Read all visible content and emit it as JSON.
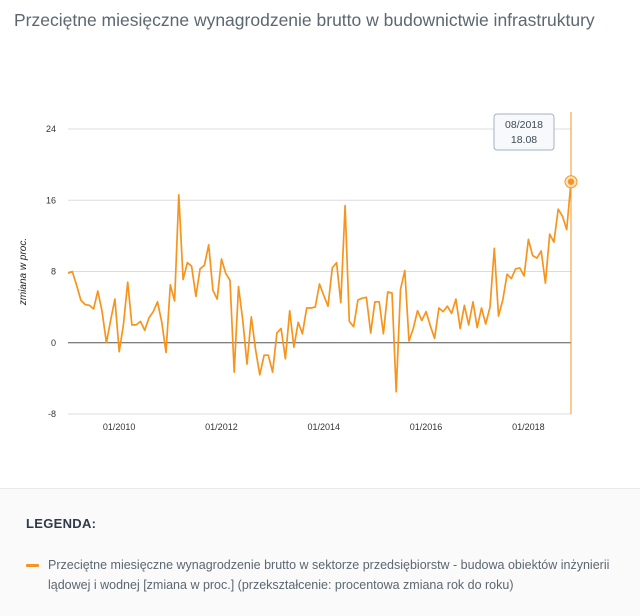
{
  "page": {
    "title": "Przeciętne miesięczne wynagrodzenie brutto w budownictwie infrastruktury"
  },
  "legend": {
    "heading": "LEGENDA:",
    "item_label": "Przeciętne miesięczne wynagrodzenie brutto w sektorze przedsiębiorstw - budowa obiektów inżynierii lądowej i wodnej [zmiana w proc.] (przekształcenie: procentowa zmiana rok do roku)",
    "item_color": "#f7941d"
  },
  "tooltip": {
    "date": "08/2018",
    "value": "18.08"
  },
  "chart_data": {
    "type": "line",
    "title": "Przeciętne miesięczne wynagrodzenie brutto w budownictwie infrastruktury",
    "xlabel": "",
    "ylabel": "zmiana w proc.",
    "ylim": [
      -8,
      24
    ],
    "yticks": [
      -8,
      0,
      8,
      16,
      24
    ],
    "xticks": [
      "01/2010",
      "01/2012",
      "01/2014",
      "01/2016",
      "01/2018"
    ],
    "x_start": "2009-01",
    "x_end": "2018-08",
    "grid": true,
    "legend_position": "bottom",
    "series": [
      {
        "name": "Przeciętne miesięczne wynagrodzenie brutto w sektorze przedsiębiorstw - budowa obiektów inżynierii lądowej i wodnej [zmiana w proc.] (przekształcenie: procentowa zmiana rok do roku)",
        "color": "#f7941d",
        "values": [
          7.8,
          8.0,
          6.5,
          4.8,
          4.3,
          4.2,
          3.8,
          5.8,
          3.5,
          0.0,
          2.5,
          4.9,
          -1.0,
          2.0,
          6.8,
          2.0,
          2.0,
          2.4,
          1.4,
          2.8,
          3.5,
          4.6,
          2.3,
          -1.1,
          6.5,
          4.7,
          16.6,
          7.1,
          9.0,
          8.6,
          5.2,
          8.3,
          8.7,
          11.0,
          5.9,
          4.9,
          9.4,
          7.8,
          7.0,
          -3.3,
          6.3,
          2.5,
          -2.4,
          2.9,
          -0.8,
          -3.6,
          -1.4,
          -1.4,
          -3.3,
          1.1,
          1.6,
          -1.8,
          3.6,
          -0.5,
          2.3,
          1.0,
          3.9,
          3.9,
          4.0,
          6.6,
          5.3,
          4.1,
          8.4,
          9.0,
          4.5,
          15.4,
          2.4,
          1.8,
          4.8,
          5.0,
          5.1,
          1.1,
          4.6,
          4.6,
          1.0,
          5.7,
          5.6,
          -5.5,
          6.0,
          8.1,
          0.2,
          1.6,
          3.6,
          2.5,
          3.5,
          1.9,
          0.5,
          3.9,
          3.5,
          4.1,
          3.3,
          4.9,
          1.6,
          4.2,
          2.0,
          4.6,
          1.7,
          3.9,
          2.1,
          4.0,
          10.6,
          3.0,
          4.8,
          7.7,
          7.2,
          8.3,
          8.4,
          7.5,
          11.6,
          9.8,
          9.5,
          10.3,
          6.7,
          12.2,
          11.3,
          15.0,
          14.2,
          12.7,
          18.08
        ]
      }
    ]
  }
}
